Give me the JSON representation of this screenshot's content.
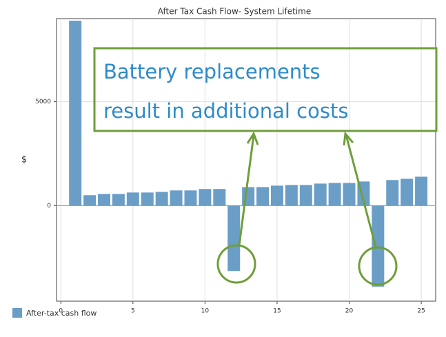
{
  "chart_data": {
    "type": "bar",
    "title": "After Tax Cash Flow- System Lifetime",
    "y_label": "$",
    "annotation": [
      "Battery replacements",
      "result in additional costs"
    ],
    "x": [
      1,
      2,
      3,
      4,
      5,
      6,
      7,
      8,
      9,
      10,
      11,
      12,
      13,
      14,
      15,
      16,
      17,
      18,
      19,
      20,
      21,
      22,
      23,
      24,
      25
    ],
    "series": [
      {
        "name": "After-tax cash flow",
        "color": "#6a9ec7",
        "values": [
          8900,
          500,
          560,
          560,
          630,
          630,
          660,
          730,
          730,
          800,
          800,
          -3150,
          890,
          890,
          960,
          990,
          990,
          1060,
          1090,
          1090,
          1160,
          -3900,
          1230,
          1290,
          1390
        ]
      }
    ],
    "xlim": [
      -0.3,
      26
    ],
    "xticks": [
      0,
      5,
      10,
      15,
      20,
      25
    ],
    "ylim": [
      -4600,
      9000
    ],
    "yticks": [
      0,
      5000
    ],
    "grid": true,
    "legend": "bottom-left"
  }
}
